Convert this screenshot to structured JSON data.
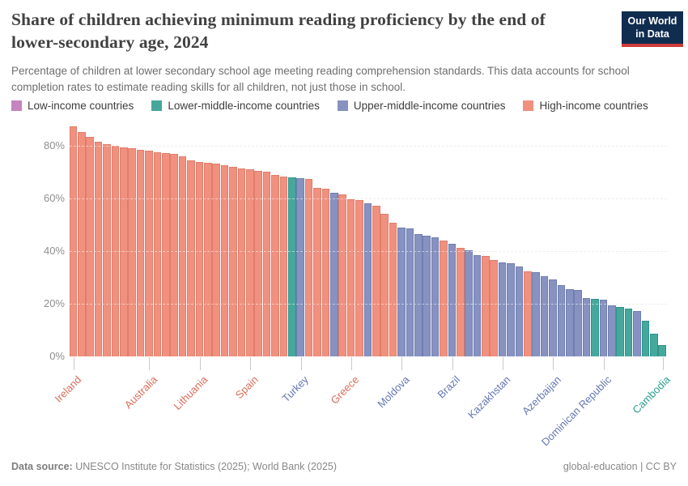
{
  "header": {
    "title": "Share of children achieving minimum reading proficiency by the end of lower-secondary age, 2024",
    "subtitle": "Percentage of children at lower secondary school age meeting reading comprehension standards. This data accounts for school completion rates to estimate reading skills for all children, not just those in school.",
    "logo": {
      "line1": "Our World",
      "line2": "in Data"
    }
  },
  "legend": [
    {
      "group": "low",
      "label": "Low-income countries"
    },
    {
      "group": "lower_middle",
      "label": "Lower-middle-income countries"
    },
    {
      "group": "upper_middle",
      "label": "Upper-middle-income countries"
    },
    {
      "group": "high",
      "label": "High-income countries"
    }
  ],
  "chart_data": {
    "type": "bar",
    "title": "Share of children achieving minimum reading proficiency by the end of lower-secondary age, 2024",
    "xlabel": "",
    "ylabel": "",
    "ylim": [
      0,
      88
    ],
    "yticks": [
      0,
      20,
      40,
      60,
      80
    ],
    "ytick_suffix": "%",
    "grid": true,
    "legend_position": "top",
    "groups": {
      "low": {
        "label": "Low-income countries",
        "fill": "#c484bf",
        "stroke": "#ad6ca8",
        "text": "#b066ab"
      },
      "lower_middle": {
        "label": "Lower-middle-income countries",
        "fill": "#46a89d",
        "stroke": "#2e9488",
        "text": "#2a9d8f"
      },
      "upper_middle": {
        "label": "Upper-middle-income countries",
        "fill": "#8792c0",
        "stroke": "#6f7eb2",
        "text": "#6577b3"
      },
      "high": {
        "label": "High-income countries",
        "fill": "#f0917f",
        "stroke": "#e07d6b",
        "text": "#d96d5b"
      }
    },
    "bars": [
      {
        "v": 87.5,
        "g": "high",
        "name": "Ireland"
      },
      {
        "v": 85.4,
        "g": "high"
      },
      {
        "v": 83.6,
        "g": "high"
      },
      {
        "v": 81.7,
        "g": "high"
      },
      {
        "v": 80.7,
        "g": "high"
      },
      {
        "v": 80.0,
        "g": "high"
      },
      {
        "v": 79.6,
        "g": "high"
      },
      {
        "v": 79.1,
        "g": "high"
      },
      {
        "v": 78.7,
        "g": "high"
      },
      {
        "v": 78.2,
        "g": "high",
        "name": "Australia"
      },
      {
        "v": 77.8,
        "g": "high"
      },
      {
        "v": 77.4,
        "g": "high"
      },
      {
        "v": 77.1,
        "g": "high"
      },
      {
        "v": 76.2,
        "g": "high"
      },
      {
        "v": 74.5,
        "g": "high"
      },
      {
        "v": 74.0,
        "g": "high",
        "name": "Lithuania"
      },
      {
        "v": 73.8,
        "g": "high"
      },
      {
        "v": 73.2,
        "g": "high"
      },
      {
        "v": 72.6,
        "g": "high"
      },
      {
        "v": 72.0,
        "g": "high"
      },
      {
        "v": 71.6,
        "g": "high"
      },
      {
        "v": 71.2,
        "g": "high",
        "name": "Spain"
      },
      {
        "v": 70.7,
        "g": "high"
      },
      {
        "v": 70.2,
        "g": "high"
      },
      {
        "v": 69.1,
        "g": "high"
      },
      {
        "v": 68.5,
        "g": "high"
      },
      {
        "v": 68.2,
        "g": "lower_middle"
      },
      {
        "v": 67.9,
        "g": "upper_middle",
        "name": "Turkey"
      },
      {
        "v": 67.4,
        "g": "high"
      },
      {
        "v": 64.0,
        "g": "high"
      },
      {
        "v": 63.7,
        "g": "high"
      },
      {
        "v": 62.4,
        "g": "upper_middle"
      },
      {
        "v": 61.5,
        "g": "high"
      },
      {
        "v": 59.8,
        "g": "high",
        "name": "Greece"
      },
      {
        "v": 59.5,
        "g": "high"
      },
      {
        "v": 58.2,
        "g": "upper_middle"
      },
      {
        "v": 57.3,
        "g": "high"
      },
      {
        "v": 54.2,
        "g": "high"
      },
      {
        "v": 51.0,
        "g": "high"
      },
      {
        "v": 49.0,
        "g": "upper_middle",
        "name": "Moldova"
      },
      {
        "v": 48.6,
        "g": "upper_middle"
      },
      {
        "v": 46.6,
        "g": "upper_middle"
      },
      {
        "v": 45.8,
        "g": "upper_middle"
      },
      {
        "v": 45.4,
        "g": "upper_middle"
      },
      {
        "v": 44.0,
        "g": "high"
      },
      {
        "v": 42.7,
        "g": "upper_middle",
        "name": "Brazil"
      },
      {
        "v": 41.2,
        "g": "high"
      },
      {
        "v": 40.4,
        "g": "upper_middle"
      },
      {
        "v": 38.6,
        "g": "upper_middle"
      },
      {
        "v": 38.1,
        "g": "high"
      },
      {
        "v": 36.8,
        "g": "high"
      },
      {
        "v": 35.8,
        "g": "upper_middle",
        "name": "Kazakhstan"
      },
      {
        "v": 35.4,
        "g": "upper_middle"
      },
      {
        "v": 34.2,
        "g": "upper_middle"
      },
      {
        "v": 32.5,
        "g": "high"
      },
      {
        "v": 32.1,
        "g": "upper_middle"
      },
      {
        "v": 30.5,
        "g": "upper_middle"
      },
      {
        "v": 29.2,
        "g": "upper_middle",
        "name": "Azerbaijan"
      },
      {
        "v": 27.1,
        "g": "upper_middle"
      },
      {
        "v": 25.7,
        "g": "upper_middle"
      },
      {
        "v": 25.2,
        "g": "upper_middle"
      },
      {
        "v": 22.3,
        "g": "upper_middle"
      },
      {
        "v": 21.8,
        "g": "lower_middle"
      },
      {
        "v": 21.5,
        "g": "upper_middle",
        "name": "Dominican Republic"
      },
      {
        "v": 19.4,
        "g": "upper_middle"
      },
      {
        "v": 18.7,
        "g": "lower_middle"
      },
      {
        "v": 18.3,
        "g": "lower_middle"
      },
      {
        "v": 17.4,
        "g": "upper_middle"
      },
      {
        "v": 13.6,
        "g": "lower_middle"
      },
      {
        "v": 8.5,
        "g": "lower_middle"
      },
      {
        "v": 4.2,
        "g": "lower_middle",
        "name": "Cambodia"
      }
    ]
  },
  "footer": {
    "source_label": "Data source:",
    "source_text": "UNESCO Institute for Statistics (2025); World Bank (2025)",
    "right_primary": "global-education",
    "right_separator": " | ",
    "right_license": "CC BY"
  }
}
